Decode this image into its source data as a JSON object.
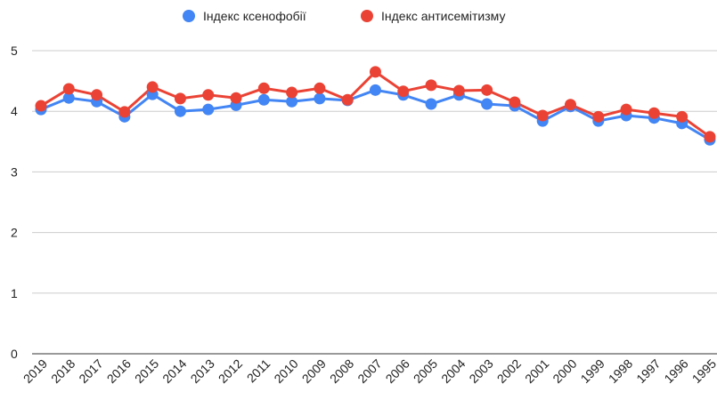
{
  "chart_data": {
    "type": "line",
    "categories": [
      "2019",
      "2018",
      "2017",
      "2016",
      "2015",
      "2014",
      "2013",
      "2012",
      "2011",
      "2010",
      "2009",
      "2008",
      "2007",
      "2006",
      "2005",
      "2004",
      "2003",
      "2002",
      "2001",
      "2000",
      "1999",
      "1998",
      "1997",
      "1996",
      "1995"
    ],
    "series": [
      {
        "name": "Індекс ксенофобії",
        "color": "#4285f4",
        "values": [
          4.03,
          4.22,
          4.16,
          3.91,
          4.28,
          4.0,
          4.03,
          4.1,
          4.19,
          4.16,
          4.21,
          4.18,
          4.35,
          4.27,
          4.12,
          4.27,
          4.12,
          4.09,
          3.84,
          4.08,
          3.84,
          3.93,
          3.89,
          3.8,
          3.53
        ]
      },
      {
        "name": "Індекс антисемітизму",
        "color": "#ea4335",
        "values": [
          4.09,
          4.37,
          4.27,
          3.99,
          4.4,
          4.21,
          4.27,
          4.22,
          4.38,
          4.31,
          4.38,
          4.19,
          4.65,
          4.33,
          4.43,
          4.34,
          4.35,
          4.15,
          3.93,
          4.11,
          3.91,
          4.03,
          3.97,
          3.91,
          3.58
        ]
      }
    ],
    "ylim": [
      0,
      5
    ],
    "yticks": [
      0,
      1,
      2,
      3,
      4,
      5
    ],
    "grid": true,
    "legend": "top"
  }
}
